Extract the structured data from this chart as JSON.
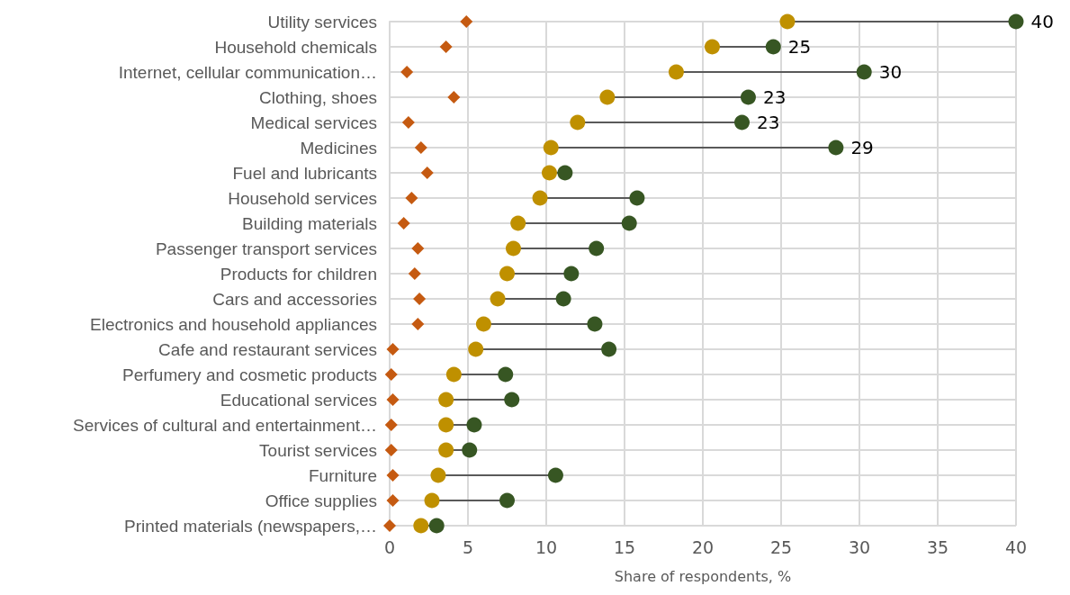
{
  "chart_data": {
    "type": "scatter",
    "xlabel": "Share of respondents, %",
    "categories": [
      "Utility services",
      "Household chemicals",
      "Internet, cellular communication…",
      "Clothing, shoes",
      "Medical services",
      "Medicines",
      "Fuel and lubricants",
      "Household services",
      "Building materials",
      "Passenger transport services",
      "Products for children",
      "Cars and accessories",
      "Electronics and household appliances",
      "Cafe and restaurant services",
      "Perfumery and cosmetic products",
      "Educational services",
      "Services of cultural and entertainment…",
      "Tourist services",
      "Furniture",
      "Office supplies",
      "Printed materials (newspapers,…"
    ],
    "orientation": "horizontal",
    "series": [
      {
        "color": "#c55a11",
        "marker": "diamond",
        "values": [
          4.9,
          3.6,
          1.1,
          4.1,
          1.2,
          2.0,
          2.4,
          1.4,
          0.9,
          1.8,
          1.6,
          1.9,
          1.8,
          0.2,
          0.1,
          0.2,
          0.1,
          0.1,
          0.2,
          0.2,
          0
        ]
      },
      {
        "color": "#bf9000",
        "marker": "circle",
        "values": [
          25.4,
          20.6,
          18.3,
          13.9,
          12.0,
          10.3,
          10.2,
          9.6,
          8.2,
          7.9,
          7.5,
          6.9,
          6.0,
          5.5,
          4.1,
          3.6,
          3.6,
          3.6,
          3.1,
          2.7,
          2.0
        ]
      },
      {
        "color": "#375623",
        "marker": "circle",
        "values": [
          40,
          24.5,
          30.3,
          22.9,
          22.5,
          28.5,
          11.2,
          15.8,
          15.3,
          13.2,
          11.6,
          11.1,
          13.1,
          14.0,
          7.4,
          7.8,
          5.4,
          5.1,
          10.6,
          7.5,
          3.0
        ],
        "value_labels": [
          "40",
          "25",
          "30",
          "23",
          "23",
          "29",
          null,
          null,
          null,
          null,
          null,
          null,
          null,
          null,
          null,
          null,
          null,
          null,
          null,
          null,
          null
        ]
      }
    ],
    "xlim": [
      0,
      40
    ],
    "xticks": [
      0,
      5,
      10,
      15,
      20,
      25,
      30,
      35,
      40
    ],
    "grid": true
  }
}
